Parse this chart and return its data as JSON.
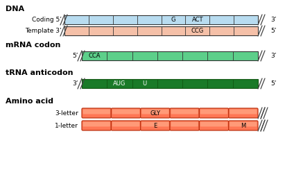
{
  "title_dna": "DNA",
  "title_mrna": "mRNA codon",
  "title_trna": "tRNA anticodon",
  "title_aa": "Amino acid",
  "dna_coding_color": "#b8dcf0",
  "dna_template_color": "#f5c0a8",
  "mrna_color": "#5dcf8a",
  "trna_color": "#1a7a28",
  "trna_end_color": "#2a9a38",
  "aa_color": "#ff7755",
  "coding_label": "Coding 5’",
  "template_label": "Template 3’",
  "coding_end": "3’",
  "template_end": "5’",
  "mrna_start": "5’",
  "mrna_end": "3’",
  "trna_start": "3’",
  "trna_end": "5’",
  "aa_3letter": "3-letter",
  "aa_1letter": "1-letter",
  "dna_g_label": "G",
  "dna_act_label": "ACT",
  "dna_ccg_label": "CCG",
  "mrna_cca_label": "CCA",
  "trna_aug_label": "AUG",
  "trna_u_label": "U",
  "aa_gly_label": "GLY",
  "aa_e_label": "E",
  "aa_m_label": "M",
  "dna_n_cells": 8,
  "mrna_n_cells": 7,
  "trna_n_cells": 7,
  "aa_n_cells": 6,
  "fig_w": 4.11,
  "fig_h": 2.71,
  "dpi": 100
}
